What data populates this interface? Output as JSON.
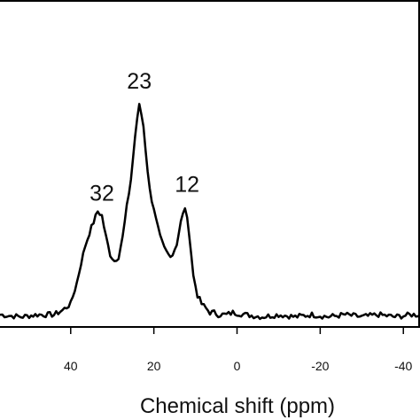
{
  "chart_data": {
    "type": "line",
    "title": "",
    "xlabel": "Chemical shift (ppm)",
    "ylabel": "",
    "x_reversed": true,
    "xlim": [
      57,
      -44
    ],
    "ylim": [
      0,
      1
    ],
    "grid": false,
    "legend": "none",
    "x_ticks": [
      40,
      20,
      0,
      -20,
      -40
    ],
    "x_tick_labels": [
      "40",
      "20",
      "0",
      "-20",
      "-40"
    ],
    "series": [
      {
        "name": "",
        "color": "#000000",
        "x": [
          57,
          52,
          48,
          44,
          42,
          40,
          38.5,
          37.5,
          36.5,
          35.5,
          34.5,
          33.5,
          32.5,
          31.5,
          30.5,
          29.5,
          28.5,
          27.5,
          26.5,
          25.5,
          24.5,
          23.5,
          22.5,
          21.5,
          20.5,
          19.5,
          18.5,
          17.5,
          16.5,
          15.5,
          14.5,
          13.5,
          12.5,
          11.5,
          10.5,
          9.5,
          8.5,
          7.5,
          6.5,
          5.5,
          4.5,
          3.5,
          2.5,
          1,
          -2,
          -6,
          -10,
          -14,
          -18,
          -22,
          -26,
          -30,
          -34,
          -38,
          -42,
          -44
        ],
        "values": [
          0.02,
          0.01,
          0.02,
          0.02,
          0.04,
          0.07,
          0.17,
          0.26,
          0.34,
          0.4,
          0.45,
          0.5,
          0.48,
          0.38,
          0.3,
          0.27,
          0.29,
          0.38,
          0.52,
          0.65,
          0.85,
          1.0,
          0.9,
          0.68,
          0.55,
          0.46,
          0.38,
          0.33,
          0.3,
          0.3,
          0.35,
          0.45,
          0.52,
          0.4,
          0.2,
          0.11,
          0.07,
          0.05,
          0.03,
          0.03,
          0.02,
          0.02,
          0.02,
          0.03,
          0.02,
          0.01,
          0.02,
          0.01,
          0.02,
          0.01,
          0.02,
          0.01,
          0.02,
          0.01,
          0.02,
          0.02
        ]
      }
    ],
    "annotations": [
      {
        "text": "32",
        "x": 32.5
      },
      {
        "text": "23",
        "x": 23.5
      },
      {
        "text": "12",
        "x": 12.0
      }
    ]
  }
}
